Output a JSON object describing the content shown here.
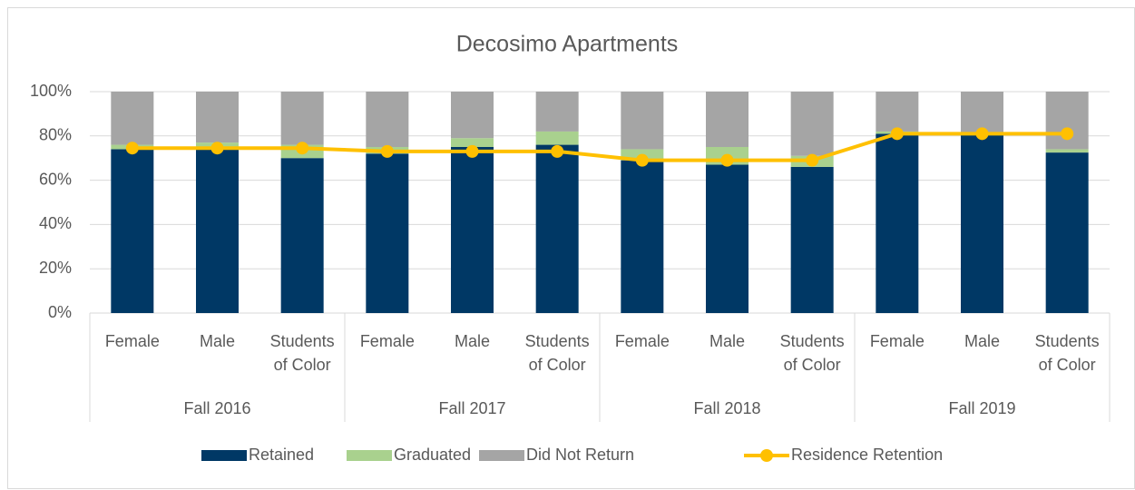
{
  "chart_data": {
    "type": "bar",
    "stacked": true,
    "title": "Decosimo Apartments",
    "categories": [
      "Female",
      "Male",
      "Students of Color",
      "Female",
      "Male",
      "Students of Color",
      "Female",
      "Male",
      "Students of Color",
      "Female",
      "Male",
      "Students of Color"
    ],
    "groups": [
      "Fall 2016",
      "Fall 2017",
      "Fall 2018",
      "Fall 2019"
    ],
    "series": [
      {
        "name": "Retained",
        "color": "#003865",
        "values": [
          74,
          74,
          70,
          72,
          75,
          76,
          69,
          67,
          66,
          81,
          81,
          72.5
        ]
      },
      {
        "name": "Graduated",
        "color": "#a9d18e",
        "values": [
          2,
          3,
          6,
          3,
          4,
          6,
          5,
          8,
          5,
          1,
          0,
          1.5
        ]
      },
      {
        "name": "Did Not Return",
        "color": "#a5a5a5",
        "values": [
          24,
          23,
          24,
          25,
          21,
          18,
          26,
          25,
          29,
          18,
          19,
          26
        ]
      },
      {
        "name": "Residence Retention",
        "type": "line",
        "color": "#ffc000",
        "values": [
          74.5,
          74.5,
          74.5,
          73,
          73,
          73,
          69,
          69,
          69,
          81,
          81,
          81
        ]
      }
    ],
    "ylim": [
      0,
      100
    ],
    "yticks": [
      {
        "value": 0,
        "label": "0%"
      },
      {
        "value": 20,
        "label": "20%"
      },
      {
        "value": 40,
        "label": "40%"
      },
      {
        "value": 60,
        "label": "60%"
      },
      {
        "value": 80,
        "label": "80%"
      },
      {
        "value": 100,
        "label": "100%"
      }
    ],
    "grid": true,
    "legend": "bottom"
  }
}
